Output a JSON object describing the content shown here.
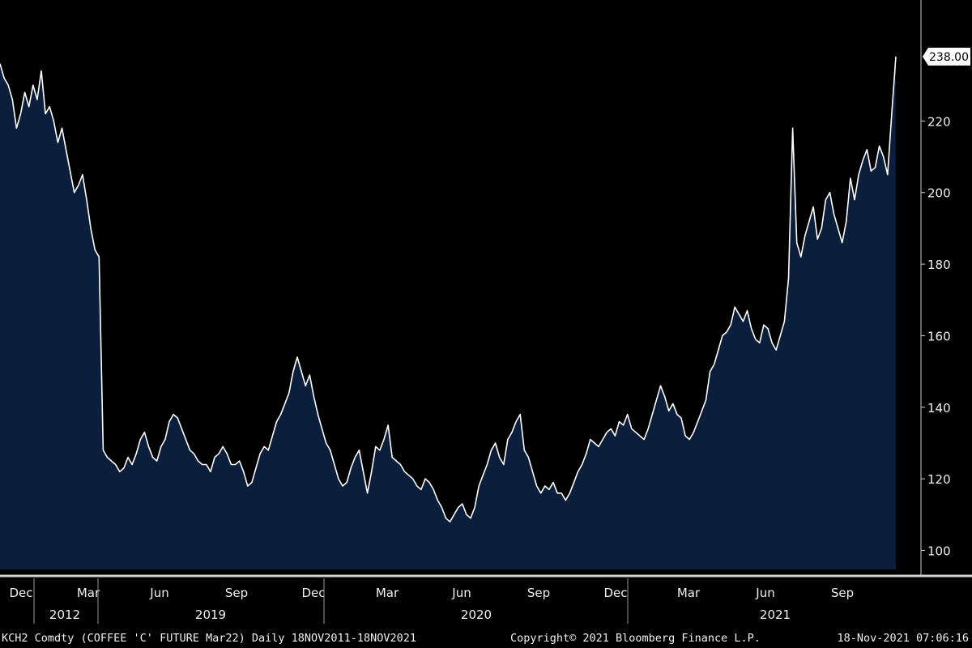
{
  "footer": {
    "security": "KCH2 Comdty (COFFEE 'C' FUTURE Mar22)  Daily 18NOV2011-18NOV2021",
    "copyright": "Copyright© 2021 Bloomberg Finance L.P.",
    "timestamp": "18-Nov-2021 07:06:16"
  },
  "colors": {
    "background": "#000000",
    "area_fill": "#0b1f3c",
    "line": "#ffffff"
  },
  "chart_data": {
    "type": "area",
    "ylim": [
      94,
      252
    ],
    "yticks": [
      "100",
      "120",
      "140",
      "160",
      "180",
      "200",
      "220"
    ],
    "last_value_label": "238.00",
    "last_value": 238.0,
    "x_tick_labels": [
      "Dec",
      "Mar",
      "Jun",
      "Sep",
      "Dec",
      "Mar",
      "Jun",
      "Sep",
      "Dec",
      "Mar",
      "Jun",
      "Sep"
    ],
    "year_labels": [
      "2012",
      "2019",
      "2020",
      "2021"
    ],
    "grid": false,
    "legend": "none",
    "series": [
      {
        "values": [
          236,
          232,
          230,
          226,
          218,
          222,
          228,
          224,
          230,
          226,
          234,
          222,
          224,
          220,
          214,
          218,
          212,
          206,
          200,
          202,
          205,
          198,
          190,
          184,
          182,
          128,
          126,
          125,
          124,
          122,
          123,
          126,
          124,
          127,
          131,
          133,
          129,
          126,
          125,
          129,
          131,
          136,
          138,
          137,
          134,
          131,
          128,
          127,
          125,
          124,
          124,
          122,
          126,
          127,
          129,
          127,
          124,
          124,
          125,
          122,
          118,
          119,
          123,
          127,
          129,
          128,
          132,
          136,
          138,
          141,
          144,
          150,
          154,
          150,
          146,
          149,
          143,
          138,
          134,
          130,
          128,
          124,
          120,
          118,
          119,
          123,
          126,
          128,
          122,
          116,
          122,
          129,
          128,
          131,
          135,
          126,
          125,
          124,
          122,
          121,
          120,
          118,
          117,
          120,
          119,
          117,
          114,
          112,
          109,
          108,
          110,
          112,
          113,
          110,
          109,
          112,
          118,
          121,
          124,
          128,
          130,
          126,
          124,
          131,
          133,
          136,
          138,
          128,
          126,
          122,
          118,
          116,
          118,
          117,
          119,
          116,
          116,
          114,
          116,
          119,
          122,
          124,
          127,
          131,
          130,
          129,
          131,
          133,
          134,
          132,
          136,
          135,
          138,
          134,
          133,
          132,
          131,
          134,
          138,
          142,
          146,
          143,
          139,
          141,
          138,
          137,
          132,
          131,
          133,
          136,
          139,
          142,
          150,
          152,
          156,
          160,
          161,
          163,
          168,
          166,
          164,
          167,
          162,
          159,
          158,
          163,
          162,
          158,
          156,
          160,
          164,
          176,
          218,
          186,
          182,
          188,
          192,
          196,
          187,
          190,
          198,
          200,
          194,
          190,
          186,
          192,
          204,
          198,
          205,
          209,
          212,
          206,
          207,
          213,
          210,
          205,
          222,
          238
        ]
      }
    ]
  }
}
